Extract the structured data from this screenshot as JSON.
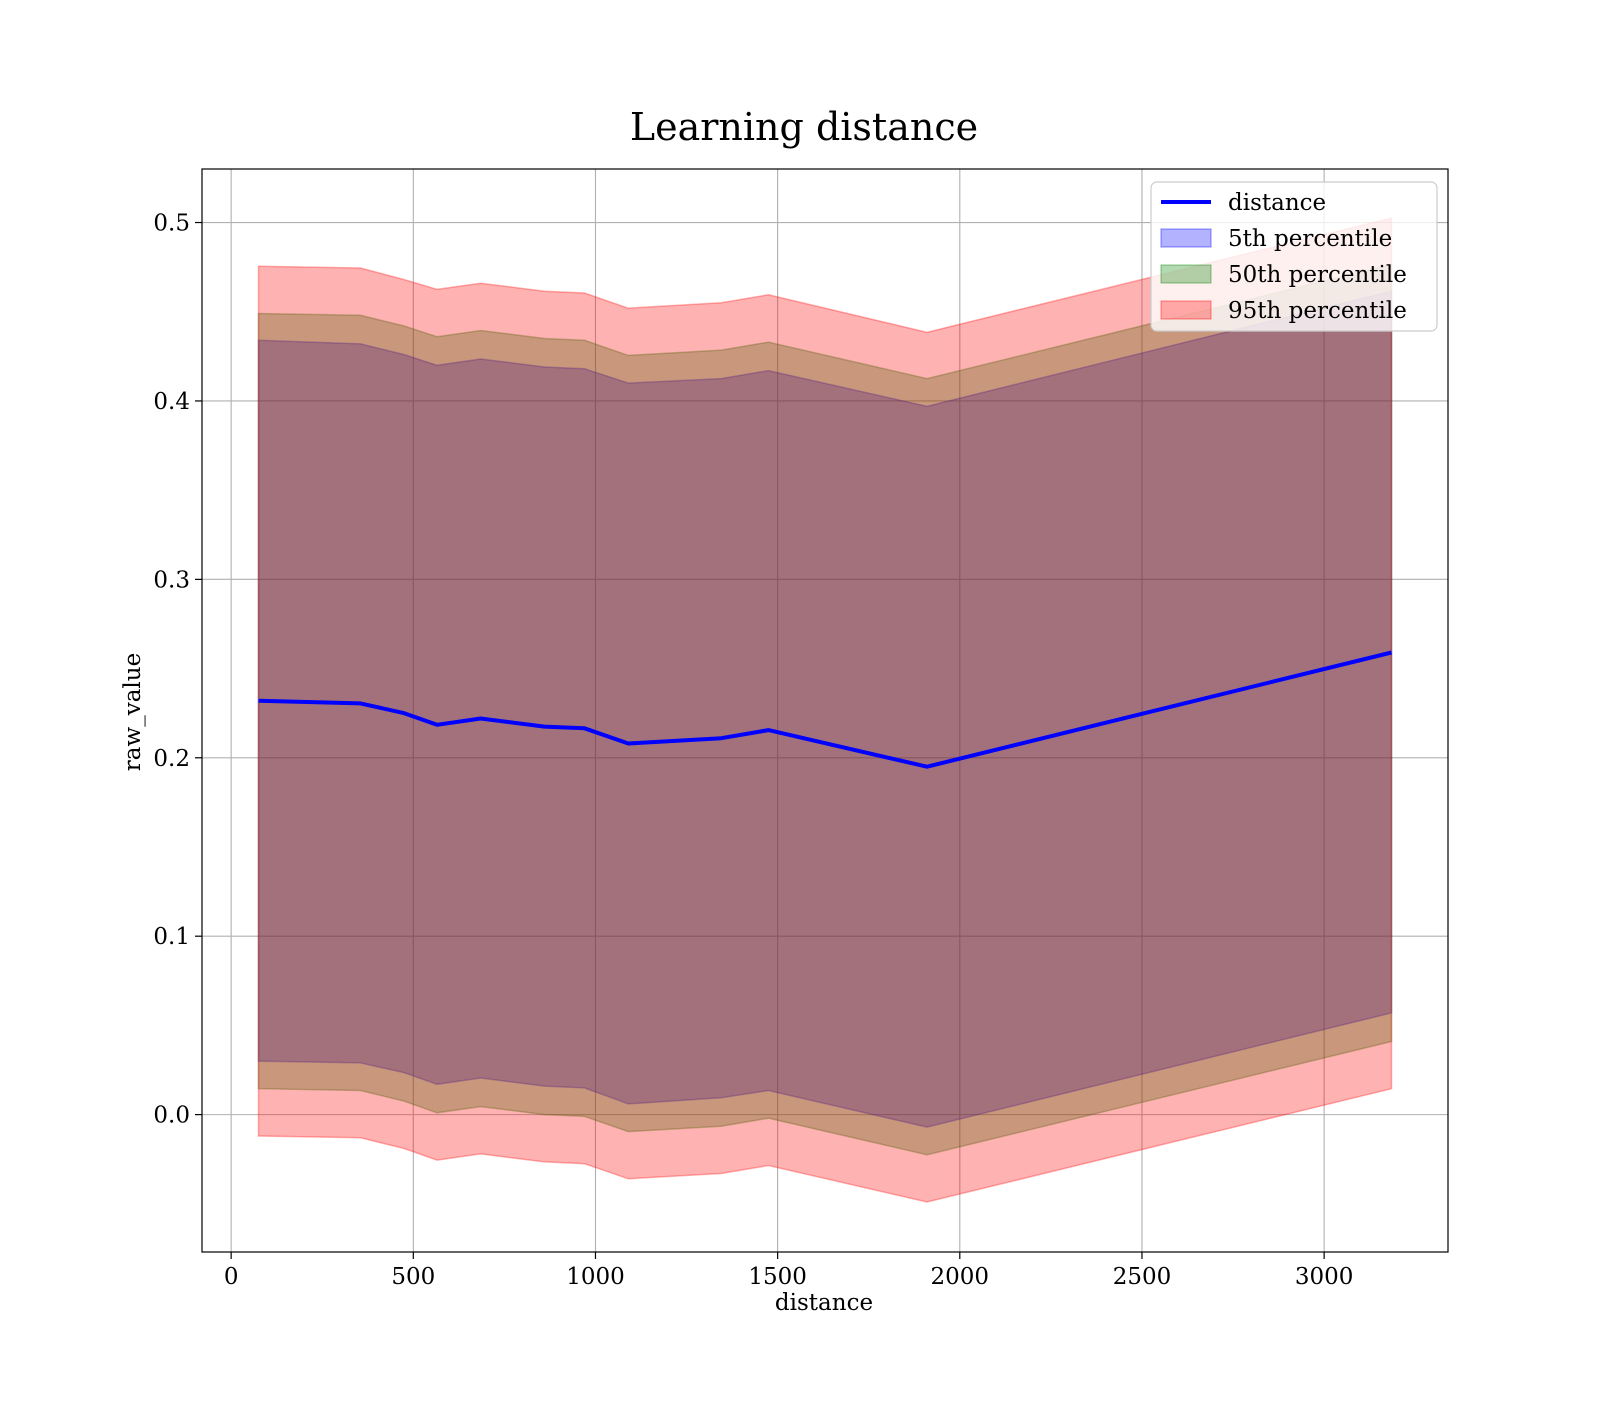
{
  "chart_data": {
    "type": "line",
    "title": "Learning distance",
    "xlabel": "distance",
    "ylabel": "raw_value",
    "xlim": [
      -80,
      3340
    ],
    "ylim": [
      -0.077,
      0.53
    ],
    "xticks": [
      0,
      500,
      1000,
      1500,
      2000,
      2500,
      3000
    ],
    "xtick_labels": [
      "0",
      "500",
      "1000",
      "1500",
      "2000",
      "2500",
      "3000"
    ],
    "yticks": [
      0.0,
      0.1,
      0.2,
      0.3,
      0.4,
      0.5
    ],
    "ytick_labels": [
      "0.0",
      "0.1",
      "0.2",
      "0.3",
      "0.4",
      "0.5"
    ],
    "grid": true,
    "legend_position": "upper right",
    "x": [
      75,
      355,
      475,
      565,
      685,
      860,
      970,
      1090,
      1345,
      1475,
      1910,
      3185
    ],
    "series": [
      {
        "name": "distance",
        "kind": "line",
        "color": "#0000ff",
        "values": [
          0.232,
          0.2305,
          0.225,
          0.2185,
          0.222,
          0.2175,
          0.2165,
          0.208,
          0.211,
          0.2155,
          0.195,
          0.259
        ]
      },
      {
        "name": "5th percentile",
        "kind": "band",
        "color": "#0000ff",
        "upper": [
          0.434,
          0.432,
          0.426,
          0.42,
          0.4235,
          0.419,
          0.418,
          0.41,
          0.4125,
          0.417,
          0.397,
          0.4615
        ],
        "lower": [
          0.03,
          0.029,
          0.0235,
          0.017,
          0.0205,
          0.016,
          0.015,
          0.006,
          0.0095,
          0.0135,
          -0.007,
          0.057
        ]
      },
      {
        "name": "50th percentile",
        "kind": "band",
        "color": "#008000",
        "upper": [
          0.449,
          0.448,
          0.442,
          0.436,
          0.4395,
          0.435,
          0.434,
          0.4255,
          0.4285,
          0.433,
          0.4125,
          0.4765
        ],
        "lower": [
          0.0145,
          0.0135,
          0.0075,
          0.001,
          0.0045,
          0.0,
          -0.001,
          -0.0095,
          -0.0065,
          -0.002,
          -0.0225,
          0.041
        ]
      },
      {
        "name": "95th percentile",
        "kind": "band",
        "color": "#ff0000",
        "upper": [
          0.4755,
          0.4745,
          0.468,
          0.4625,
          0.466,
          0.4615,
          0.4605,
          0.452,
          0.455,
          0.4595,
          0.4385,
          0.5025
        ],
        "lower": [
          -0.012,
          -0.013,
          -0.019,
          -0.0255,
          -0.022,
          -0.0265,
          -0.0275,
          -0.036,
          -0.033,
          -0.0285,
          -0.049,
          0.0145
        ]
      }
    ]
  }
}
